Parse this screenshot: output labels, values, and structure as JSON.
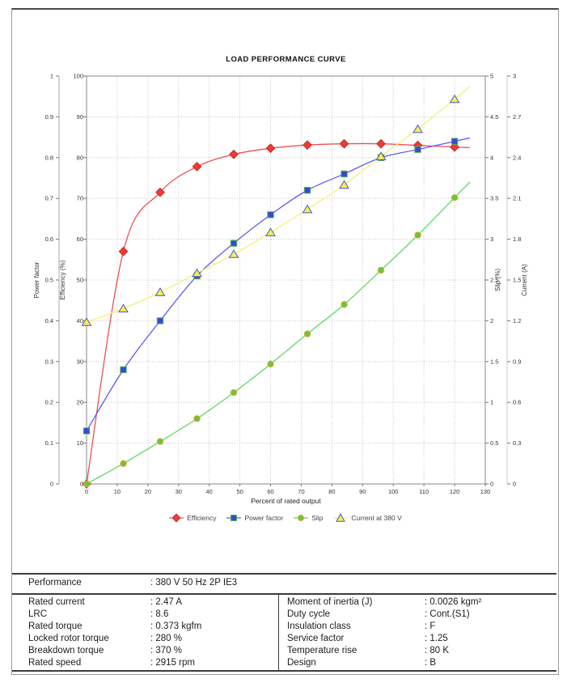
{
  "chart": {
    "title": "LOAD PERFORMANCE CURVE",
    "x_axis": {
      "label": "Percent of rated output",
      "min": 0,
      "max": 130,
      "ticks": [
        "0",
        "10",
        "20",
        "30",
        "40",
        "50",
        "60",
        "70",
        "80",
        "90",
        "100",
        "110",
        "120",
        "130"
      ]
    },
    "axes": {
      "power_factor": {
        "label": "Power factor",
        "min": 0,
        "max": 1,
        "ticks": [
          "0",
          "0.1",
          "0.2",
          "0.3",
          "0.4",
          "0.5",
          "0.6",
          "0.7",
          "0.8",
          "0.9",
          "1"
        ]
      },
      "efficiency": {
        "label": "Efficiency (%)",
        "min": 0,
        "max": 100,
        "ticks": [
          "0",
          "10",
          "20",
          "30",
          "40",
          "50",
          "60",
          "70",
          "80",
          "90",
          "100"
        ]
      },
      "slip": {
        "label": "Slip (%)",
        "min": 0,
        "max": 5,
        "ticks": [
          "0",
          "0.5",
          "1",
          "1.5",
          "2",
          "2.5",
          "3",
          "3.5",
          "4",
          "4.5",
          "5"
        ]
      },
      "current": {
        "label": "Current (A)",
        "min": 0,
        "max": 3,
        "ticks": [
          "0",
          "0.3",
          "0.6",
          "0.9",
          "1.2",
          "1.5",
          "1.8",
          "2.1",
          "2.4",
          "2.7",
          "3"
        ]
      }
    },
    "grid_color": "#c6c6c6",
    "border_color": "#8a8a8a"
  },
  "chart_data": {
    "type": "line",
    "title": "LOAD PERFORMANCE CURVE",
    "xlabel": "Percent of rated output",
    "xlim": [
      0,
      130
    ],
    "grid": true,
    "legend_position": "bottom",
    "x": [
      0,
      12,
      24,
      36,
      48,
      60,
      72,
      84,
      96,
      108,
      120
    ],
    "series": [
      {
        "name": "Efficiency",
        "axis": "efficiency",
        "marker": "diamond",
        "line_color": "#ee5050",
        "marker_fill": "#ee3b33",
        "marker_stroke": "#c62828",
        "values": [
          0,
          57,
          71.5,
          77.8,
          80.8,
          82.3,
          83.1,
          83.4,
          83.4,
          83,
          82.6
        ]
      },
      {
        "name": "Power factor",
        "axis": "power_factor",
        "marker": "square",
        "line_color": "#5c5cf0",
        "marker_fill": "#3648d6",
        "marker_stroke": "#55b555",
        "values": [
          0.13,
          0.28,
          0.4,
          0.51,
          0.59,
          0.66,
          0.72,
          0.76,
          0.8,
          0.82,
          0.84
        ]
      },
      {
        "name": "Slip",
        "axis": "slip",
        "marker": "circle",
        "line_color": "#61d861",
        "marker_fill": "#5ecc3a",
        "marker_stroke": "#f0a030",
        "values": [
          0,
          0.25,
          0.52,
          0.8,
          1.12,
          1.47,
          1.84,
          2.2,
          2.62,
          3.05,
          3.51
        ]
      },
      {
        "name": "Current at 380 V",
        "axis": "current",
        "marker": "triangle",
        "line_color": "#f6ef72",
        "marker_fill": "#f6f04c",
        "marker_stroke": "#4a55d0",
        "values": [
          1.19,
          1.29,
          1.41,
          1.55,
          1.69,
          1.85,
          2.02,
          2.2,
          2.41,
          2.61,
          2.83
        ]
      }
    ]
  },
  "table": {
    "performance_label": "Performance",
    "performance_value": ": 380 V 50 Hz 2P IE3",
    "left_rows": [
      {
        "label": "Rated current",
        "value": ": 2.47 A"
      },
      {
        "label": "LRC",
        "value": ": 8.6"
      },
      {
        "label": "Rated torque",
        "value": ": 0.373 kgfm"
      },
      {
        "label": "Locked rotor torque",
        "value": ": 280 %"
      },
      {
        "label": "Breakdown torque",
        "value": ": 370 %"
      },
      {
        "label": "Rated speed",
        "value": ": 2915 rpm"
      }
    ],
    "right_rows": [
      {
        "label": "Moment of inertia (J)",
        "value": ": 0.0026 kgm²"
      },
      {
        "label": "Duty cycle",
        "value": ": Cont.(S1)"
      },
      {
        "label": "Insulation class",
        "value": ": F"
      },
      {
        "label": "Service factor",
        "value": ": 1.25"
      },
      {
        "label": "Temperature rise",
        "value": ": 80 K"
      },
      {
        "label": "Design",
        "value": ": B"
      }
    ]
  }
}
